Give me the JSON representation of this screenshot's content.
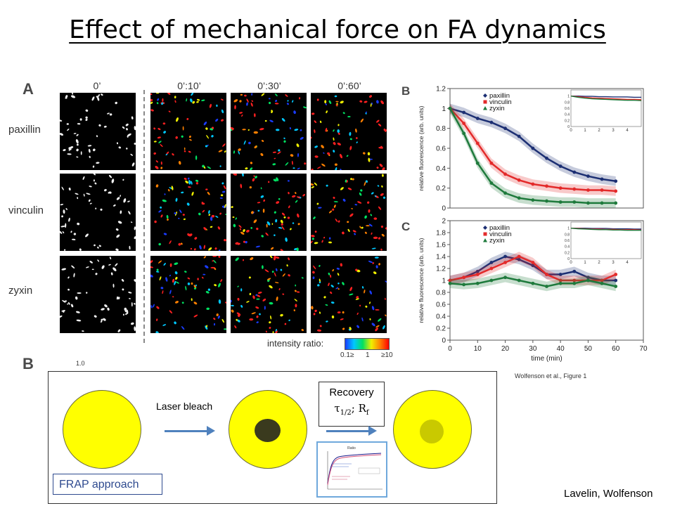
{
  "title": "Effect of mechanical force on FA dynamics",
  "panel_letters": {
    "a": "A",
    "b": "B",
    "c": "C",
    "d_partial": "B"
  },
  "panel_a": {
    "columns": [
      "0’",
      "0’:10’",
      "0’:30’",
      "0’:60’"
    ],
    "rows": [
      "paxillin",
      "vinculin",
      "zyxin"
    ],
    "scale_label": "intensity ratio:",
    "scale_ticks": [
      "0.1≥",
      "1",
      "≥10"
    ]
  },
  "partial_tick": "1.0",
  "figure_credit": "Wolfenson et al., Figure 1",
  "colors": {
    "paxillin": "#1c2f73",
    "vinculin": "#e32a2a",
    "zyxin": "#1e7a3c",
    "yellow": "#ffff00",
    "arrow": "#4f81bd"
  },
  "chart_data": [
    {
      "type": "line",
      "panel": "B",
      "ylabel": "relative fluorescence (arb. units)",
      "xlabel": "",
      "xlim": [
        0,
        70
      ],
      "ylim": [
        0,
        1.2
      ],
      "yticks": [
        "0",
        "0.2",
        "0.4",
        "0.6",
        "0.8",
        "1",
        "1.2"
      ],
      "x": [
        0,
        5,
        10,
        15,
        20,
        25,
        30,
        35,
        40,
        45,
        50,
        55,
        60
      ],
      "series": [
        {
          "name": "paxillin",
          "color": "#1c2f73",
          "values": [
            1.0,
            0.96,
            0.9,
            0.86,
            0.8,
            0.72,
            0.6,
            0.5,
            0.42,
            0.36,
            0.32,
            0.29,
            0.27
          ]
        },
        {
          "name": "vinculin",
          "color": "#e32a2a",
          "values": [
            1.0,
            0.85,
            0.65,
            0.45,
            0.34,
            0.28,
            0.24,
            0.22,
            0.2,
            0.19,
            0.18,
            0.18,
            0.17
          ]
        },
        {
          "name": "zyxin",
          "color": "#1e7a3c",
          "values": [
            1.0,
            0.75,
            0.45,
            0.25,
            0.15,
            0.1,
            0.08,
            0.07,
            0.06,
            0.06,
            0.05,
            0.05,
            0.05
          ]
        }
      ],
      "inset": {
        "xlim": [
          0,
          5
        ],
        "ylim": [
          0,
          1.2
        ],
        "xticks": [
          "0",
          "1",
          "2",
          "3",
          "4"
        ],
        "yticks": [
          "0",
          "0.2",
          "0.4",
          "0.6",
          "0.8",
          "1"
        ],
        "x": [
          0,
          0.5,
          1,
          1.5,
          2,
          2.5,
          3,
          3.5,
          4,
          4.5,
          5
        ],
        "series": [
          {
            "name": "paxillin",
            "values": [
              1.0,
              1.0,
              0.99,
              0.99,
              0.98,
              0.98,
              0.97,
              0.97,
              0.97,
              0.96,
              0.96
            ]
          },
          {
            "name": "vinculin",
            "values": [
              1.0,
              0.98,
              0.96,
              0.94,
              0.93,
              0.92,
              0.91,
              0.9,
              0.89,
              0.89,
              0.88
            ]
          },
          {
            "name": "zyxin",
            "values": [
              1.0,
              0.96,
              0.93,
              0.91,
              0.9,
              0.89,
              0.88,
              0.87,
              0.86,
              0.86,
              0.85
            ]
          }
        ]
      },
      "legend": "top-left"
    },
    {
      "type": "line",
      "panel": "C",
      "ylabel": "relative fluorescence (arb. units)",
      "xlabel": "time (min)",
      "xlim": [
        0,
        70
      ],
      "ylim": [
        0,
        2
      ],
      "yticks": [
        "0",
        "0.2",
        "0.4",
        "0.6",
        "0.8",
        "1",
        "1.2",
        "1.4",
        "1.6",
        "1.8",
        "2"
      ],
      "xticks": [
        "0",
        "10",
        "20",
        "30",
        "40",
        "50",
        "60",
        "70"
      ],
      "x": [
        0,
        5,
        10,
        15,
        20,
        25,
        30,
        35,
        40,
        45,
        50,
        55,
        60
      ],
      "series": [
        {
          "name": "paxillin",
          "color": "#1c2f73",
          "values": [
            1.0,
            1.05,
            1.15,
            1.3,
            1.4,
            1.35,
            1.25,
            1.1,
            1.1,
            1.15,
            1.05,
            1.0,
            1.0
          ]
        },
        {
          "name": "vinculin",
          "color": "#e32a2a",
          "values": [
            1.0,
            1.05,
            1.1,
            1.2,
            1.3,
            1.4,
            1.3,
            1.1,
            1.0,
            1.0,
            1.0,
            1.0,
            1.1
          ]
        },
        {
          "name": "zyxin",
          "color": "#1e7a3c",
          "values": [
            0.95,
            0.93,
            0.95,
            1.0,
            1.05,
            1.0,
            0.95,
            0.9,
            0.95,
            0.95,
            1.0,
            0.95,
            0.9
          ]
        }
      ],
      "inset": {
        "xlim": [
          0,
          5
        ],
        "ylim": [
          0,
          1.2
        ],
        "xticks": [
          "0",
          "1",
          "2",
          "3",
          "4"
        ],
        "yticks": [
          "0",
          "0.2",
          "0.4",
          "0.6",
          "0.8",
          "1"
        ],
        "x": [
          0,
          0.5,
          1,
          1.5,
          2,
          2.5,
          3,
          3.5,
          4,
          4.5,
          5
        ],
        "series": [
          {
            "name": "paxillin",
            "values": [
              1.0,
              1.0,
              1.0,
              0.99,
              0.99,
              0.99,
              0.98,
              0.98,
              0.98,
              0.97,
              0.97
            ]
          },
          {
            "name": "vinculin",
            "values": [
              1.0,
              0.99,
              0.98,
              0.97,
              0.97,
              0.96,
              0.96,
              0.95,
              0.95,
              0.95,
              0.94
            ]
          },
          {
            "name": "zyxin",
            "values": [
              1.0,
              0.98,
              0.97,
              0.96,
              0.95,
              0.95,
              0.94,
              0.94,
              0.93,
              0.93,
              0.93
            ]
          }
        ]
      },
      "legend": "top-left"
    }
  ],
  "frap": {
    "step1_label": "Laser bleach",
    "recovery_title": "Recovery",
    "recovery_params_tau": "τ",
    "recovery_params_tau_sub": "1/2",
    "recovery_params_sep": "; R",
    "recovery_params_r_sub": "f",
    "approach_label": "FRAP approach",
    "thumbnail_title": "Ratio"
  },
  "credit": "Lavelin, Wolfenson"
}
